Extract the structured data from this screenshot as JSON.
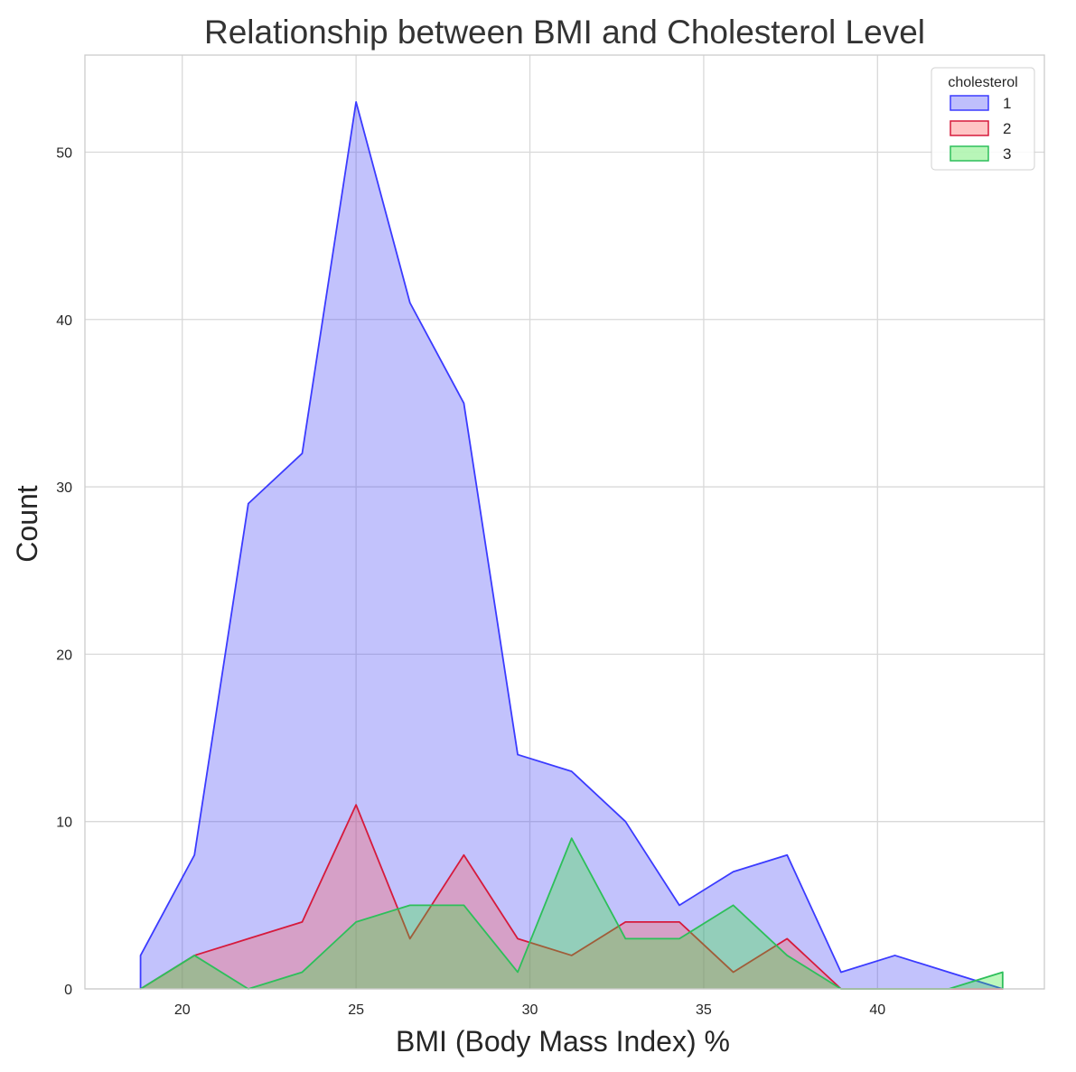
{
  "chart_data": {
    "type": "area",
    "title": "Relationship between BMI and Cholesterol Level",
    "xlabel": "BMI (Body Mass Index) %",
    "ylabel": "Count",
    "xlim": [
      17.2,
      44.8
    ],
    "ylim": [
      0,
      55.8
    ],
    "xticks": [
      20,
      25,
      30,
      35,
      40
    ],
    "yticks": [
      0,
      10,
      20,
      30,
      40,
      50
    ],
    "grid": true,
    "legend": {
      "title": "cholesterol",
      "placement": "top-right"
    },
    "x": [
      18.8,
      20.35,
      21.9,
      23.45,
      25.0,
      26.55,
      28.1,
      29.65,
      31.2,
      32.75,
      34.3,
      35.85,
      37.4,
      38.95,
      40.5,
      42.05,
      43.6
    ],
    "series": [
      {
        "name": "1",
        "color": "#3b3bff",
        "fill": "#4747f5",
        "values": [
          2,
          8,
          29,
          32,
          53,
          41,
          35,
          14,
          13,
          10,
          5,
          7,
          8,
          1,
          2,
          1,
          0
        ]
      },
      {
        "name": "2",
        "color": "#d61a3c",
        "fill": "#ff5a5a",
        "values": [
          0,
          2,
          3,
          4,
          11,
          3,
          8,
          3,
          2,
          4,
          4,
          1,
          3,
          0,
          0,
          0,
          0
        ]
      },
      {
        "name": "3",
        "color": "#2dbf5a",
        "fill": "#33e633",
        "values": [
          0,
          2,
          0,
          1,
          4,
          5,
          5,
          1,
          9,
          3,
          3,
          5,
          2,
          0,
          0,
          0,
          1
        ]
      }
    ]
  }
}
